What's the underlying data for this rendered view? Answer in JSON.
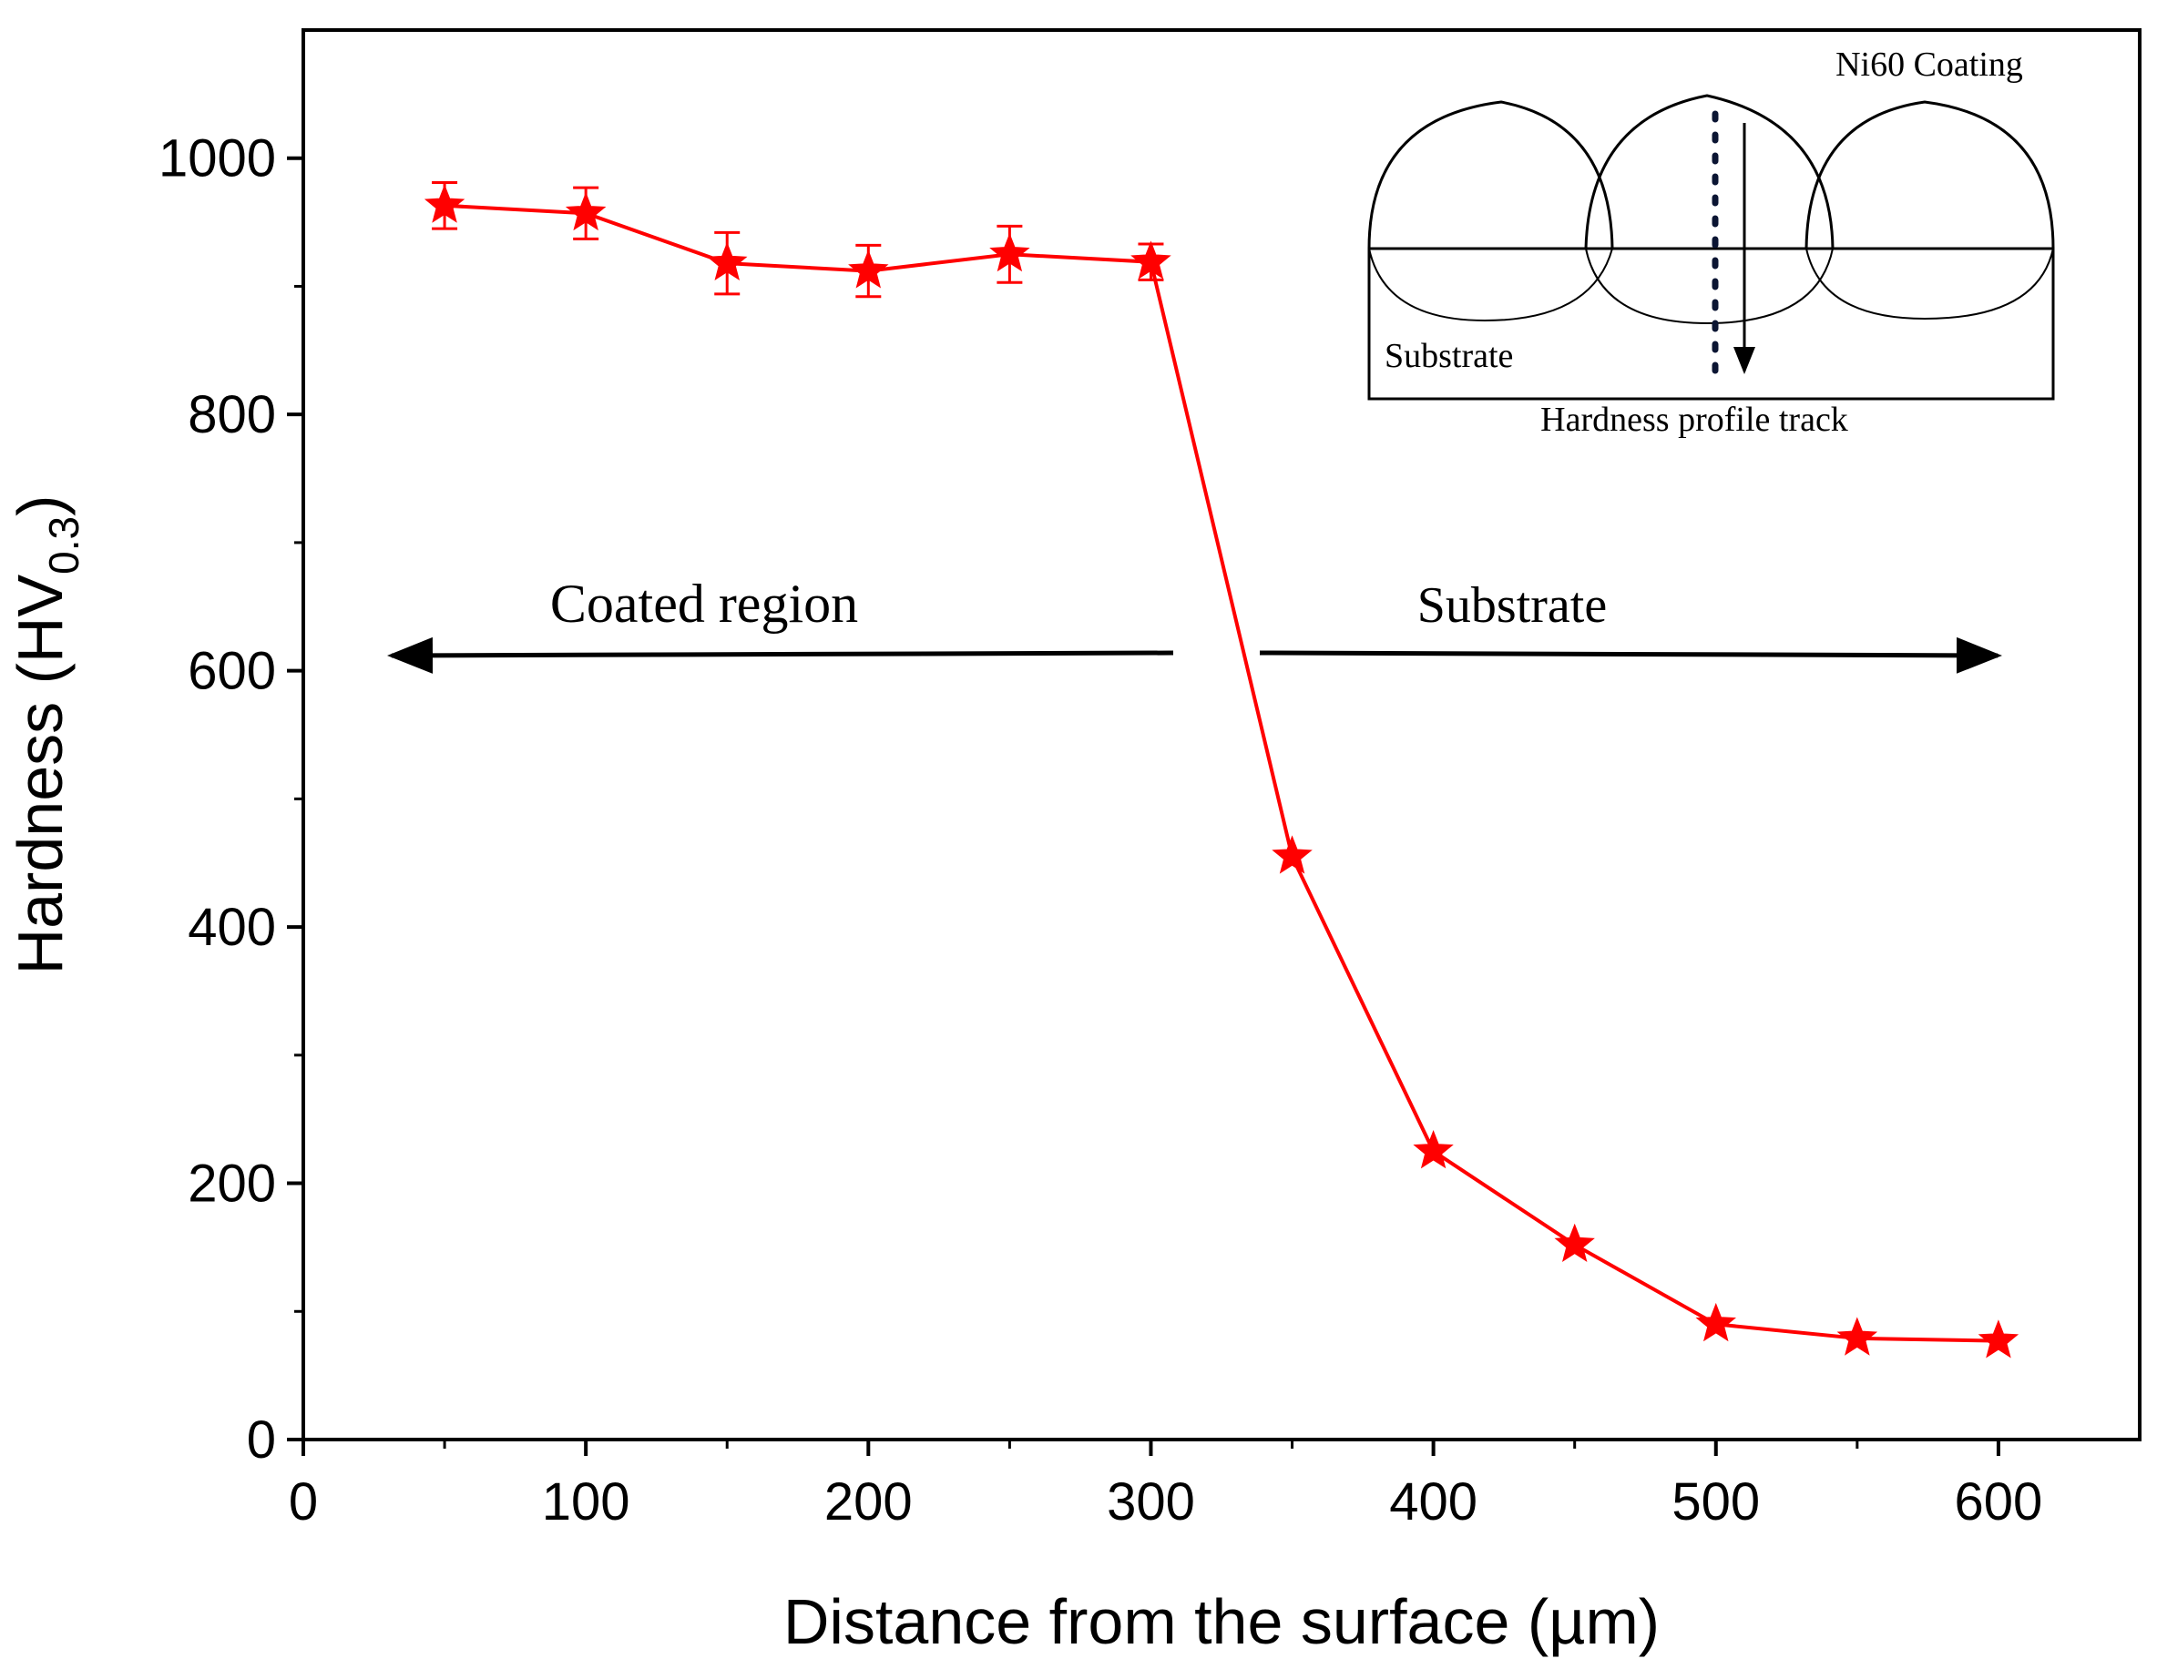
{
  "chart_data": {
    "type": "line",
    "title": "",
    "xlabel": "Distance from the surface (µm)",
    "ylabel_main": "Hardness (HV",
    "ylabel_sub": "0.3",
    "ylabel_close": ")",
    "xlim": [
      0,
      650
    ],
    "ylim": [
      0,
      1100
    ],
    "xticks": [
      0,
      100,
      200,
      300,
      400,
      500,
      600
    ],
    "yticks": [
      0,
      200,
      400,
      600,
      800,
      1000
    ],
    "series": [
      {
        "name": "Hardness",
        "color": "#ff0000",
        "marker": "star",
        "x": [
          50,
          100,
          150,
          200,
          250,
          300,
          350,
          400,
          450,
          500,
          550,
          600
        ],
        "y": [
          963,
          957,
          918,
          912,
          925,
          919,
          455,
          225,
          152,
          90,
          79,
          77
        ],
        "err": [
          18,
          20,
          24,
          20,
          22,
          14,
          0,
          0,
          0,
          0,
          0,
          0
        ]
      }
    ],
    "annotations": {
      "coated_region": "Coated region",
      "substrate": "Substrate"
    },
    "inset": {
      "coating_label": "Ni60 Coating",
      "substrate_label": "Substrate",
      "track_label": "Hardness profile track"
    }
  }
}
